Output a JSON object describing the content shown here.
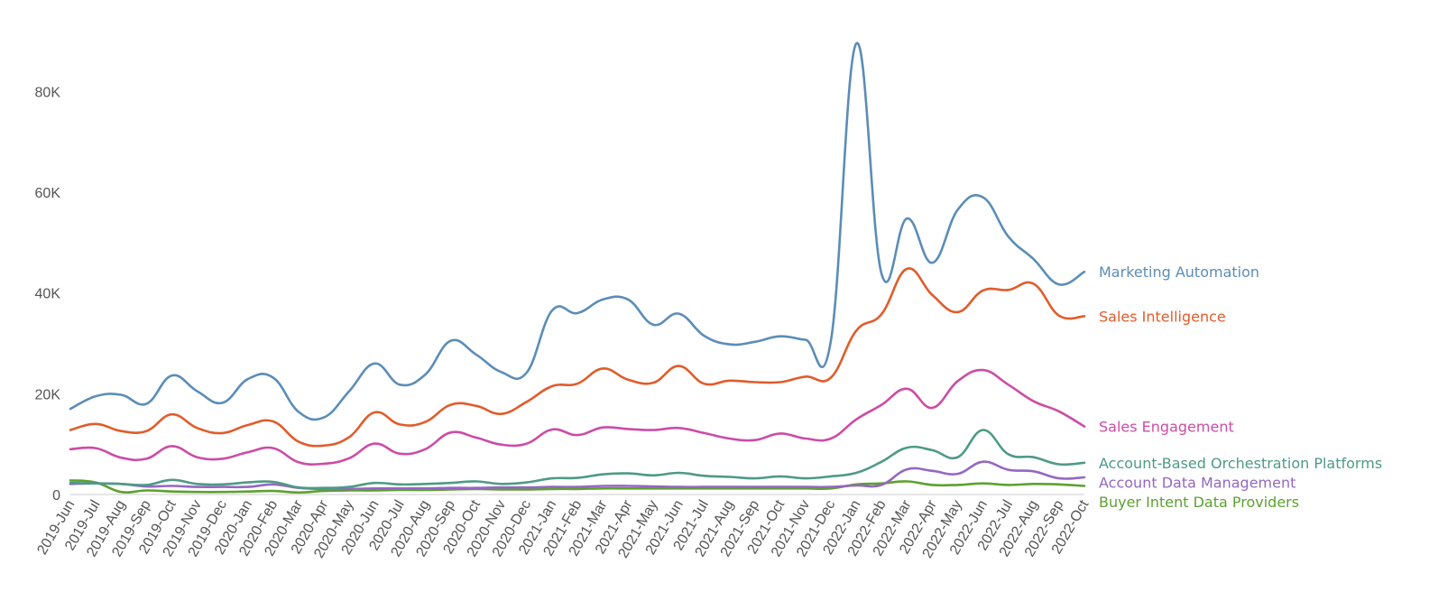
{
  "chart_data": {
    "type": "line",
    "title": "",
    "xlabel": "",
    "ylabel": "",
    "x": [
      "2019-Jun",
      "2019-Jul",
      "2019-Aug",
      "2019-Sep",
      "2019-Oct",
      "2019-Nov",
      "2019-Dec",
      "2020-Jan",
      "2020-Feb",
      "2020-Mar",
      "2020-Apr",
      "2020-May",
      "2020-Jun",
      "2020-Jul",
      "2020-Aug",
      "2020-Sep",
      "2020-Oct",
      "2020-Nov",
      "2020-Dec",
      "2021-Jan",
      "2021-Feb",
      "2021-Mar",
      "2021-Apr",
      "2021-May",
      "2021-Jun",
      "2021-Jul",
      "2021-Aug",
      "2021-Sep",
      "2021-Oct",
      "2021-Nov",
      "2021-Dec",
      "2022-Jan",
      "2022-Feb",
      "2022-Mar",
      "2022-Apr",
      "2022-May",
      "2022-Jun",
      "2022-Jul",
      "2022-Aug",
      "2022-Sep",
      "2022-Oct"
    ],
    "ylim": [
      0,
      90000
    ],
    "yticks": [
      0,
      20000,
      40000,
      60000,
      80000
    ],
    "ytick_labels": [
      "0",
      "20K",
      "40K",
      "60K",
      "80K"
    ],
    "grid": false,
    "legend": "right, labels at line ends",
    "series": [
      {
        "name": "Marketing Automation",
        "color": "#5b8db8",
        "values": [
          17000,
          19500,
          19800,
          18000,
          23600,
          20500,
          18200,
          22900,
          23200,
          16400,
          15300,
          20500,
          26000,
          21800,
          23800,
          30500,
          27800,
          24300,
          24200,
          36500,
          36000,
          38700,
          38700,
          33700,
          35900,
          31500,
          29800,
          30300,
          31400,
          30700,
          30500,
          89500,
          43800,
          54800,
          46000,
          56500,
          59000,
          51200,
          46700,
          41700,
          44200
        ]
      },
      {
        "name": "Sales Intelligence",
        "color": "#e15c2b",
        "values": [
          12800,
          14000,
          12600,
          12600,
          15900,
          13200,
          12200,
          13800,
          14500,
          10500,
          9700,
          11400,
          16300,
          13900,
          14400,
          17800,
          17600,
          16000,
          18400,
          21500,
          22000,
          25000,
          22800,
          22200,
          25500,
          22000,
          22600,
          22300,
          22300,
          23400,
          23200,
          32500,
          35800,
          44800,
          39600,
          36200,
          40500,
          40600,
          41800,
          35500,
          35400
        ]
      },
      {
        "name": "Sales Engagement",
        "color": "#cc4ca5",
        "values": [
          9000,
          9200,
          7300,
          7100,
          9600,
          7400,
          7100,
          8400,
          9200,
          6400,
          6100,
          7200,
          10100,
          8100,
          9000,
          12300,
          11300,
          9900,
          10100,
          12900,
          11800,
          13300,
          13000,
          12800,
          13200,
          12200,
          11100,
          10800,
          12100,
          11100,
          11100,
          14900,
          17800,
          21000,
          17200,
          22500,
          24700,
          21800,
          18500,
          16500,
          13500
        ]
      },
      {
        "name": "Account-Based Orchestration Platforms",
        "color": "#4e9a86",
        "values": [
          2300,
          2200,
          2100,
          1900,
          2900,
          2100,
          2000,
          2400,
          2500,
          1400,
          1300,
          1500,
          2300,
          2000,
          2100,
          2300,
          2600,
          2100,
          2400,
          3200,
          3300,
          4000,
          4200,
          3800,
          4300,
          3700,
          3500,
          3200,
          3600,
          3200,
          3600,
          4300,
          6500,
          9300,
          8800,
          7400,
          12800,
          8000,
          7400,
          6000,
          6300
        ]
      },
      {
        "name": "Account Data Management",
        "color": "#9467c2",
        "values": [
          2100,
          2200,
          2100,
          1600,
          1700,
          1500,
          1500,
          1500,
          2000,
          1300,
          1100,
          1100,
          1200,
          1200,
          1200,
          1300,
          1300,
          1400,
          1400,
          1500,
          1500,
          1700,
          1700,
          1600,
          1500,
          1500,
          1500,
          1500,
          1500,
          1500,
          1500,
          1800,
          1900,
          5000,
          4700,
          4100,
          6500,
          4900,
          4600,
          3200,
          3400
        ]
      },
      {
        "name": "Buyer Intent Data Providers",
        "color": "#5da130",
        "values": [
          2800,
          2400,
          500,
          800,
          600,
          500,
          500,
          600,
          700,
          400,
          700,
          800,
          800,
          900,
          900,
          1000,
          1100,
          1000,
          1000,
          1100,
          1100,
          1200,
          1200,
          1200,
          1200,
          1200,
          1200,
          1200,
          1200,
          1200,
          1200,
          2000,
          2200,
          2600,
          1900,
          1900,
          2200,
          1900,
          2100,
          2000,
          1700
        ]
      }
    ]
  }
}
